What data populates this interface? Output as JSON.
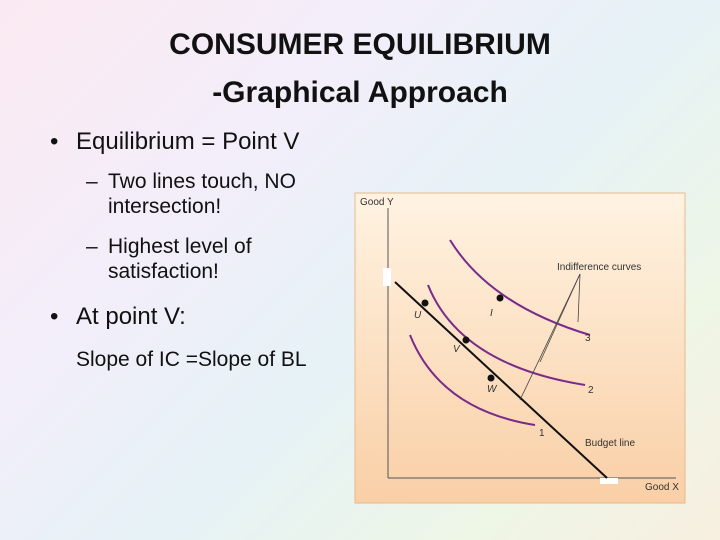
{
  "title": {
    "line1": "CONSUMER EQUILIBRIUM",
    "line2": "-Graphical Approach"
  },
  "bullets": [
    {
      "text": "Equilibrium = Point V",
      "subitems": [
        "Two lines touch, NO intersection!",
        "Highest level of satisfaction!"
      ]
    },
    {
      "text": "At point V:"
    }
  ],
  "note": "Slope of IC =Slope of BL",
  "diagram": {
    "y_axis": "Good Y",
    "x_axis": "Good X",
    "curves_label": "Indifference curves",
    "budget_label": "Budget line",
    "points": {
      "u": "U",
      "i": "I",
      "v": "V",
      "w": "W"
    },
    "curve_numbers": [
      "1",
      "2",
      "3"
    ]
  }
}
